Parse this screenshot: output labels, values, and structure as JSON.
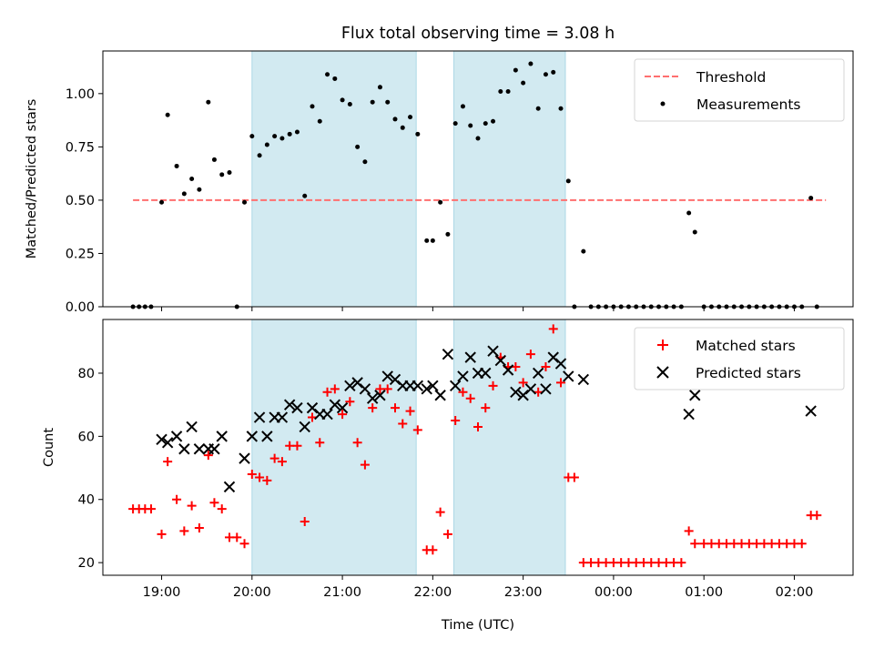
{
  "title": "Flux total observing time = 3.08 h",
  "xlabel": "Time (UTC)",
  "xticks": [
    "19:00",
    "20:00",
    "21:00",
    "22:00",
    "23:00",
    "00:00",
    "01:00",
    "02:00"
  ],
  "colors": {
    "shade": "#add8e6",
    "threshold": "#ff6f6f",
    "measurements": "#000000",
    "matched": "#ff0000",
    "predicted": "#000000"
  },
  "chart_data": [
    {
      "type": "scatter",
      "ylabel": "Matched/Predicted stars",
      "ylim": [
        0.0,
        1.2
      ],
      "yticks": [
        "0.00",
        "0.25",
        "0.50",
        "0.75",
        "1.00"
      ],
      "xlim": [
        "18:21",
        "02:39"
      ],
      "shaded_intervals": [
        [
          "20:00",
          "21:49"
        ],
        [
          "22:14",
          "23:28"
        ]
      ],
      "threshold": {
        "name": "Threshold",
        "value": 0.5,
        "x": [
          "18:41",
          "02:21"
        ]
      },
      "legend": {
        "placement": "top-right",
        "entries": [
          "Threshold",
          "Measurements"
        ]
      },
      "series": [
        {
          "name": "Measurements",
          "points": [
            [
              "18:41",
              0.0
            ],
            [
              "18:45",
              0.0
            ],
            [
              "18:49",
              0.0
            ],
            [
              "18:53",
              0.0
            ],
            [
              "19:00",
              0.49
            ],
            [
              "19:04",
              0.9
            ],
            [
              "19:10",
              0.66
            ],
            [
              "19:15",
              0.53
            ],
            [
              "19:20",
              0.6
            ],
            [
              "19:25",
              0.55
            ],
            [
              "19:31",
              0.96
            ],
            [
              "19:35",
              0.69
            ],
            [
              "19:40",
              0.62
            ],
            [
              "19:45",
              0.63
            ],
            [
              "19:50",
              0.0
            ],
            [
              "19:55",
              0.49
            ],
            [
              "20:00",
              0.8
            ],
            [
              "20:05",
              0.71
            ],
            [
              "20:10",
              0.76
            ],
            [
              "20:15",
              0.8
            ],
            [
              "20:20",
              0.79
            ],
            [
              "20:25",
              0.81
            ],
            [
              "20:30",
              0.82
            ],
            [
              "20:35",
              0.52
            ],
            [
              "20:40",
              0.94
            ],
            [
              "20:45",
              0.87
            ],
            [
              "20:50",
              1.09
            ],
            [
              "20:55",
              1.07
            ],
            [
              "21:00",
              0.97
            ],
            [
              "21:05",
              0.95
            ],
            [
              "21:10",
              0.75
            ],
            [
              "21:15",
              0.68
            ],
            [
              "21:20",
              0.96
            ],
            [
              "21:25",
              1.03
            ],
            [
              "21:30",
              0.96
            ],
            [
              "21:35",
              0.88
            ],
            [
              "21:40",
              0.84
            ],
            [
              "21:45",
              0.89
            ],
            [
              "21:50",
              0.81
            ],
            [
              "21:56",
              0.31
            ],
            [
              "22:00",
              0.31
            ],
            [
              "22:05",
              0.49
            ],
            [
              "22:10",
              0.34
            ],
            [
              "22:15",
              0.86
            ],
            [
              "22:20",
              0.94
            ],
            [
              "22:25",
              0.85
            ],
            [
              "22:30",
              0.79
            ],
            [
              "22:35",
              0.86
            ],
            [
              "22:40",
              0.87
            ],
            [
              "22:45",
              1.01
            ],
            [
              "22:50",
              1.01
            ],
            [
              "22:55",
              1.11
            ],
            [
              "23:00",
              1.05
            ],
            [
              "23:05",
              1.14
            ],
            [
              "23:10",
              0.93
            ],
            [
              "23:15",
              1.09
            ],
            [
              "23:20",
              1.1
            ],
            [
              "23:25",
              0.93
            ],
            [
              "23:30",
              0.59
            ],
            [
              "23:34",
              0.0
            ],
            [
              "23:40",
              0.26
            ],
            [
              "23:45",
              0.0
            ],
            [
              "23:50",
              0.0
            ],
            [
              "23:55",
              0.0
            ],
            [
              "00:00",
              0.0
            ],
            [
              "00:05",
              0.0
            ],
            [
              "00:10",
              0.0
            ],
            [
              "00:15",
              0.0
            ],
            [
              "00:20",
              0.0
            ],
            [
              "00:25",
              0.0
            ],
            [
              "00:30",
              0.0
            ],
            [
              "00:35",
              0.0
            ],
            [
              "00:40",
              0.0
            ],
            [
              "00:45",
              0.0
            ],
            [
              "00:50",
              0.44
            ],
            [
              "00:54",
              0.35
            ],
            [
              "01:00",
              0.0
            ],
            [
              "01:05",
              0.0
            ],
            [
              "01:10",
              0.0
            ],
            [
              "01:15",
              0.0
            ],
            [
              "01:20",
              0.0
            ],
            [
              "01:25",
              0.0
            ],
            [
              "01:30",
              0.0
            ],
            [
              "01:35",
              0.0
            ],
            [
              "01:40",
              0.0
            ],
            [
              "01:45",
              0.0
            ],
            [
              "01:50",
              0.0
            ],
            [
              "01:55",
              0.0
            ],
            [
              "02:00",
              0.0
            ],
            [
              "02:05",
              0.0
            ],
            [
              "02:11",
              0.51
            ],
            [
              "02:15",
              0.0
            ]
          ]
        }
      ]
    },
    {
      "type": "scatter",
      "ylabel": "Count",
      "ylim": [
        16,
        97
      ],
      "yticks": [
        "20",
        "40",
        "60",
        "80"
      ],
      "xlim": [
        "18:21",
        "02:39"
      ],
      "shaded_intervals": [
        [
          "20:00",
          "21:49"
        ],
        [
          "22:14",
          "23:28"
        ]
      ],
      "legend": {
        "placement": "top-right",
        "entries": [
          "Matched stars",
          "Predicted stars"
        ]
      },
      "series": [
        {
          "name": "Matched stars",
          "marker": "plus",
          "points": [
            [
              "18:41",
              37
            ],
            [
              "18:45",
              37
            ],
            [
              "18:49",
              37
            ],
            [
              "18:53",
              37
            ],
            [
              "19:00",
              29
            ],
            [
              "19:04",
              52
            ],
            [
              "19:10",
              40
            ],
            [
              "19:15",
              30
            ],
            [
              "19:20",
              38
            ],
            [
              "19:25",
              31
            ],
            [
              "19:31",
              54
            ],
            [
              "19:35",
              39
            ],
            [
              "19:40",
              37
            ],
            [
              "19:45",
              28
            ],
            [
              "19:50",
              28
            ],
            [
              "19:55",
              26
            ],
            [
              "20:00",
              48
            ],
            [
              "20:05",
              47
            ],
            [
              "20:10",
              46
            ],
            [
              "20:15",
              53
            ],
            [
              "20:20",
              52
            ],
            [
              "20:25",
              57
            ],
            [
              "20:30",
              57
            ],
            [
              "20:35",
              33
            ],
            [
              "20:40",
              66
            ],
            [
              "20:45",
              58
            ],
            [
              "20:50",
              74
            ],
            [
              "20:55",
              75
            ],
            [
              "21:00",
              67
            ],
            [
              "21:05",
              71
            ],
            [
              "21:10",
              58
            ],
            [
              "21:15",
              51
            ],
            [
              "21:20",
              69
            ],
            [
              "21:25",
              75
            ],
            [
              "21:30",
              75
            ],
            [
              "21:35",
              69
            ],
            [
              "21:40",
              64
            ],
            [
              "21:45",
              68
            ],
            [
              "21:50",
              62
            ],
            [
              "21:56",
              24
            ],
            [
              "22:00",
              24
            ],
            [
              "22:05",
              36
            ],
            [
              "22:10",
              29
            ],
            [
              "22:15",
              65
            ],
            [
              "22:20",
              74
            ],
            [
              "22:25",
              72
            ],
            [
              "22:30",
              63
            ],
            [
              "22:35",
              69
            ],
            [
              "22:40",
              76
            ],
            [
              "22:45",
              85
            ],
            [
              "22:50",
              82
            ],
            [
              "22:55",
              82
            ],
            [
              "23:00",
              77
            ],
            [
              "23:05",
              86
            ],
            [
              "23:10",
              74
            ],
            [
              "23:15",
              82
            ],
            [
              "23:20",
              94
            ],
            [
              "23:25",
              77
            ],
            [
              "23:30",
              47
            ],
            [
              "23:34",
              47
            ],
            [
              "23:40",
              20
            ],
            [
              "23:45",
              20
            ],
            [
              "23:50",
              20
            ],
            [
              "23:55",
              20
            ],
            [
              "00:00",
              20
            ],
            [
              "00:05",
              20
            ],
            [
              "00:10",
              20
            ],
            [
              "00:15",
              20
            ],
            [
              "00:20",
              20
            ],
            [
              "00:25",
              20
            ],
            [
              "00:30",
              20
            ],
            [
              "00:35",
              20
            ],
            [
              "00:40",
              20
            ],
            [
              "00:45",
              20
            ],
            [
              "00:50",
              30
            ],
            [
              "00:54",
              26
            ],
            [
              "01:00",
              26
            ],
            [
              "01:05",
              26
            ],
            [
              "01:10",
              26
            ],
            [
              "01:15",
              26
            ],
            [
              "01:20",
              26
            ],
            [
              "01:25",
              26
            ],
            [
              "01:30",
              26
            ],
            [
              "01:35",
              26
            ],
            [
              "01:40",
              26
            ],
            [
              "01:45",
              26
            ],
            [
              "01:50",
              26
            ],
            [
              "01:55",
              26
            ],
            [
              "02:00",
              26
            ],
            [
              "02:05",
              26
            ],
            [
              "02:11",
              35
            ],
            [
              "02:15",
              35
            ]
          ]
        },
        {
          "name": "Predicted stars",
          "marker": "x",
          "points": [
            [
              "19:00",
              59
            ],
            [
              "19:04",
              58
            ],
            [
              "19:10",
              60
            ],
            [
              "19:15",
              56
            ],
            [
              "19:20",
              63
            ],
            [
              "19:25",
              56
            ],
            [
              "19:31",
              56
            ],
            [
              "19:35",
              56
            ],
            [
              "19:40",
              60
            ],
            [
              "19:45",
              44
            ],
            [
              "19:55",
              53
            ],
            [
              "20:00",
              60
            ],
            [
              "20:05",
              66
            ],
            [
              "20:10",
              60
            ],
            [
              "20:15",
              66
            ],
            [
              "20:20",
              66
            ],
            [
              "20:25",
              70
            ],
            [
              "20:30",
              69
            ],
            [
              "20:35",
              63
            ],
            [
              "20:40",
              69
            ],
            [
              "20:45",
              67
            ],
            [
              "20:50",
              67
            ],
            [
              "20:55",
              70
            ],
            [
              "21:00",
              69
            ],
            [
              "21:05",
              76
            ],
            [
              "21:10",
              77
            ],
            [
              "21:15",
              75
            ],
            [
              "21:20",
              72
            ],
            [
              "21:25",
              73
            ],
            [
              "21:30",
              79
            ],
            [
              "21:35",
              78
            ],
            [
              "21:40",
              76
            ],
            [
              "21:45",
              76
            ],
            [
              "21:50",
              76
            ],
            [
              "21:56",
              75
            ],
            [
              "22:00",
              76
            ],
            [
              "22:05",
              73
            ],
            [
              "22:10",
              86
            ],
            [
              "22:15",
              76
            ],
            [
              "22:20",
              79
            ],
            [
              "22:25",
              85
            ],
            [
              "22:30",
              80
            ],
            [
              "22:35",
              80
            ],
            [
              "22:40",
              87
            ],
            [
              "22:45",
              84
            ],
            [
              "22:50",
              81
            ],
            [
              "22:55",
              74
            ],
            [
              "23:00",
              73
            ],
            [
              "23:05",
              75
            ],
            [
              "23:10",
              80
            ],
            [
              "23:15",
              75
            ],
            [
              "23:20",
              85
            ],
            [
              "23:25",
              83
            ],
            [
              "23:30",
              79
            ],
            [
              "23:40",
              78
            ],
            [
              "00:50",
              67
            ],
            [
              "00:54",
              73
            ],
            [
              "02:11",
              68
            ]
          ]
        }
      ]
    }
  ]
}
